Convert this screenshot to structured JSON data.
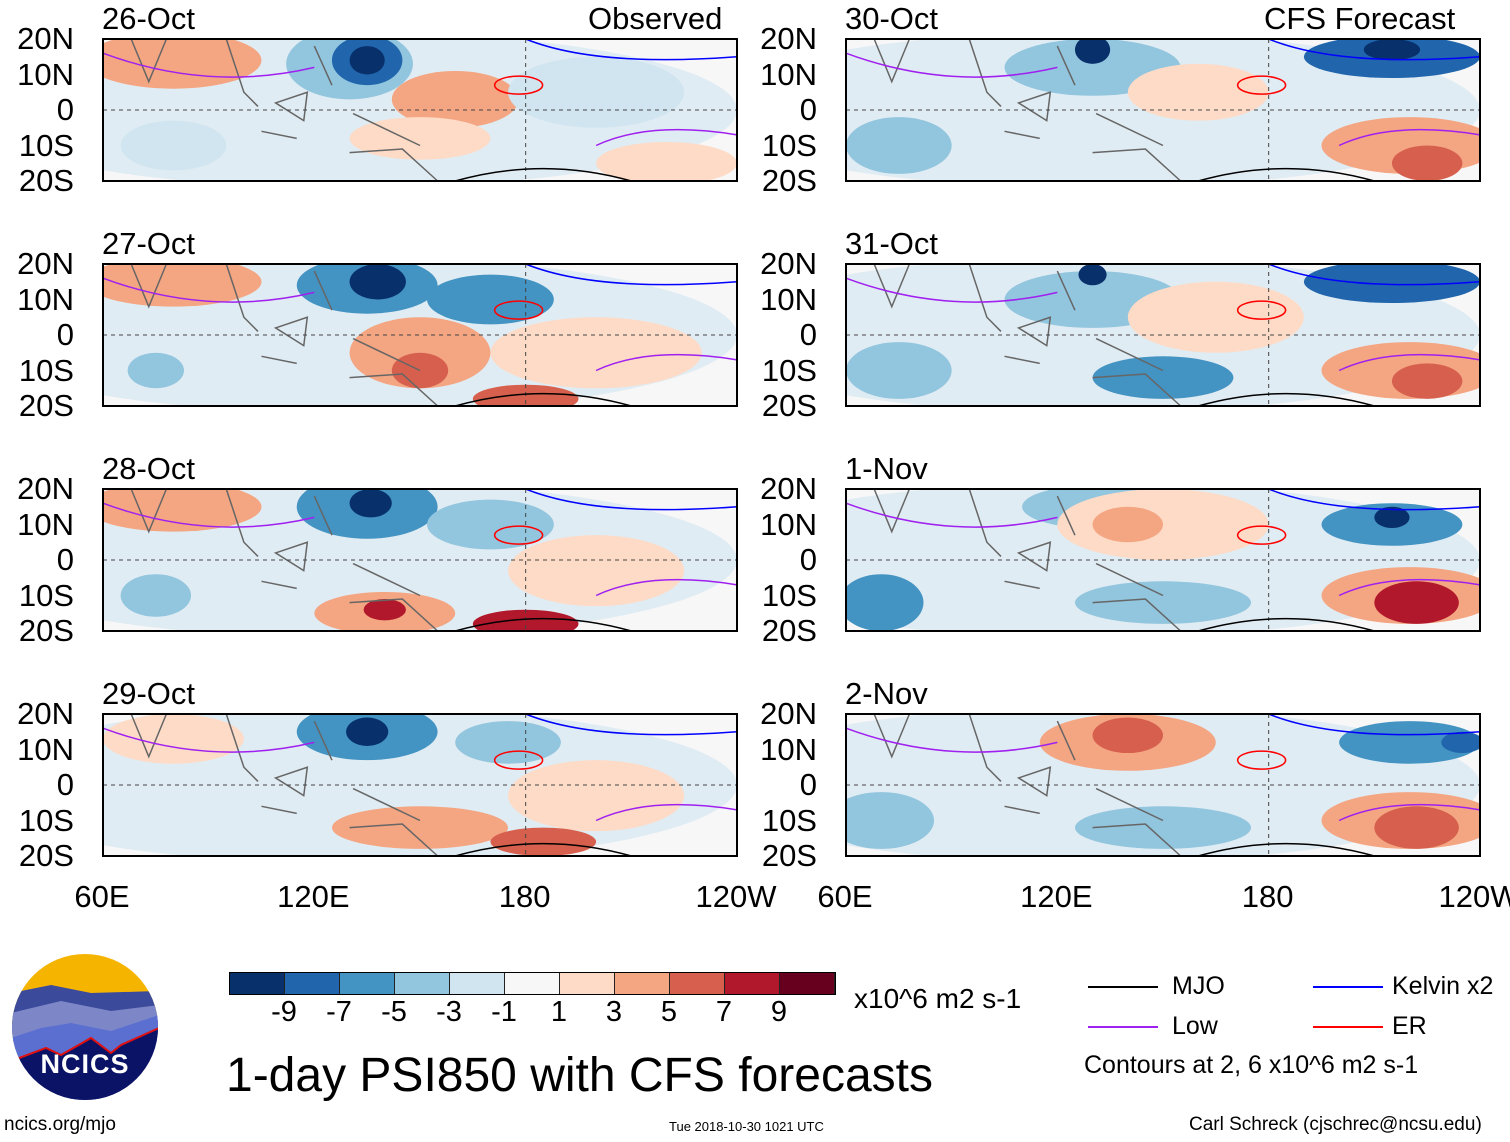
{
  "left_header": "Observed",
  "right_header": "CFS Forecast",
  "left_panels": [
    "26-Oct",
    "27-Oct",
    "28-Oct",
    "29-Oct"
  ],
  "right_panels": [
    "30-Oct",
    "31-Oct",
    "1-Nov",
    "2-Nov"
  ],
  "lat_labels": [
    "20N",
    "10N",
    "0",
    "10S",
    "20S"
  ],
  "lon_labels": [
    "60E",
    "120E",
    "180",
    "120W"
  ],
  "colorbar": {
    "colors": [
      "#08306b",
      "#2166ac",
      "#4393c3",
      "#92c5de",
      "#d1e5f0",
      "#f7f7f7",
      "#fddbc7",
      "#f4a582",
      "#d6604d",
      "#b2182b",
      "#67001f"
    ],
    "ticks": [
      "-9",
      "-7",
      "-5",
      "-3",
      "-1",
      "1",
      "3",
      "5",
      "7",
      "9"
    ],
    "units": "x10^6 m2 s-1"
  },
  "title": "1-day PSI850 with CFS forecasts",
  "legend": [
    {
      "label": "MJO",
      "color": "#000000"
    },
    {
      "label": "Kelvin x2",
      "color": "#0000ff"
    },
    {
      "label": "Low",
      "color": "#a020f0"
    },
    {
      "label": "ER",
      "color": "#ff0000"
    }
  ],
  "contour_note": "Contours at 2, 6 x10^6 m2 s-1",
  "logo_text": "NCICS",
  "site": "ncics.org/mjo",
  "timestamp": "Tue 2018-10-30 1021 UTC",
  "credit": "Carl Schreck (cjschrec@ncsu.edu)"
}
